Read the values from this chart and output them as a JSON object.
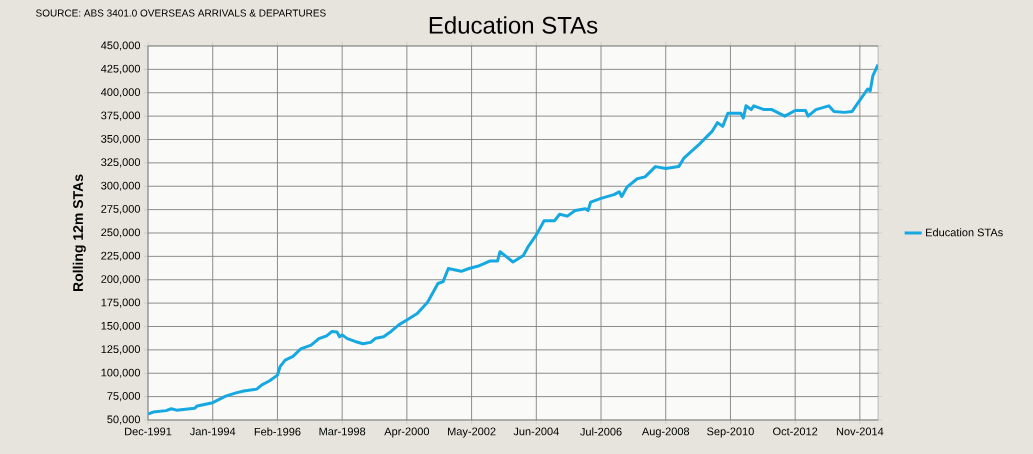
{
  "chart_data": {
    "type": "line",
    "title": "Education STAs",
    "ylabel": "Rolling 12m STAs",
    "annotations": [
      "SOURCE: ABS 3401.0 OVERSEAS ARRIVALS & DEPARTURES"
    ],
    "x": [
      "1991-12",
      "1992-02",
      "1992-07",
      "1992-09",
      "1992-11",
      "1993-06",
      "1993-07",
      "1994-01",
      "1994-06",
      "1994-10",
      "1995-01",
      "1995-06",
      "1995-08",
      "1995-11",
      "1996-02",
      "1996-03",
      "1996-05",
      "1996-08",
      "1996-11",
      "1997-03",
      "1997-06",
      "1997-09",
      "1997-11",
      "1998-01",
      "1998-02",
      "1998-03",
      "1998-05",
      "1998-08",
      "1998-11",
      "1999-02",
      "1999-04",
      "1999-07",
      "1999-10",
      "2000-01",
      "2000-04",
      "2000-08",
      "2000-12",
      "2001-04",
      "2001-06",
      "2001-08",
      "2002-01",
      "2002-04",
      "2002-08",
      "2002-12",
      "2003-03",
      "2003-04",
      "2003-09",
      "2004-01",
      "2004-03",
      "2004-06",
      "2004-09",
      "2005-01",
      "2005-03",
      "2005-06",
      "2005-09",
      "2006-01",
      "2006-02",
      "2006-03",
      "2006-07",
      "2006-12",
      "2007-02",
      "2007-03",
      "2007-05",
      "2007-09",
      "2007-12",
      "2008-04",
      "2008-08",
      "2009-01",
      "2009-03",
      "2009-09",
      "2010-02",
      "2010-04",
      "2010-06",
      "2010-08",
      "2011-01",
      "2011-02",
      "2011-03",
      "2011-05",
      "2011-06",
      "2011-10",
      "2012-01",
      "2012-06",
      "2012-10",
      "2013-02",
      "2013-03",
      "2013-06",
      "2013-11",
      "2014-01",
      "2014-05",
      "2014-08",
      "2014-10",
      "2015-02",
      "2015-03",
      "2015-04",
      "2015-06"
    ],
    "series": [
      {
        "name": "Education STAs",
        "color": "#16a8e0",
        "values": [
          56400,
          58500,
          60000,
          62000,
          60500,
          62500,
          65000,
          68500,
          75500,
          79000,
          81000,
          83000,
          87500,
          92000,
          98000,
          107000,
          114000,
          118000,
          126000,
          130000,
          137000,
          140000,
          144600,
          144000,
          139000,
          141000,
          137000,
          134000,
          131500,
          133000,
          137500,
          139000,
          145000,
          152000,
          157000,
          164000,
          176000,
          196000,
          198000,
          212000,
          209000,
          212000,
          215000,
          220000,
          220000,
          230000,
          219000,
          226000,
          236000,
          248000,
          263000,
          263000,
          270000,
          268000,
          274000,
          276000,
          274000,
          283000,
          287000,
          291000,
          294000,
          289000,
          299000,
          308000,
          310000,
          321000,
          319000,
          321000,
          330000,
          345000,
          359000,
          368000,
          364000,
          378000,
          378000,
          373000,
          386000,
          382000,
          386000,
          382000,
          382000,
          375000,
          381000,
          381000,
          375000,
          382000,
          386000,
          380000,
          379000,
          380000,
          388000,
          404000,
          402000,
          418000,
          430000
        ]
      }
    ],
    "xlim": [
      "1991-12",
      "2015-06"
    ],
    "xticks": [
      {
        "value": "1991-12",
        "label": "Dec-1991"
      },
      {
        "value": "1994-01",
        "label": "Jan-1994"
      },
      {
        "value": "1996-02",
        "label": "Feb-1996"
      },
      {
        "value": "1998-03",
        "label": "Mar-1998"
      },
      {
        "value": "2000-04",
        "label": "Apr-2000"
      },
      {
        "value": "2002-05",
        "label": "May-2002"
      },
      {
        "value": "2004-06",
        "label": "Jun-2004"
      },
      {
        "value": "2006-07",
        "label": "Jul-2006"
      },
      {
        "value": "2008-08",
        "label": "Aug-2008"
      },
      {
        "value": "2010-09",
        "label": "Sep-2010"
      },
      {
        "value": "2012-10",
        "label": "Oct-2012"
      },
      {
        "value": "2014-11",
        "label": "Nov-2014"
      }
    ],
    "ylim": [
      50000,
      450000
    ],
    "yticks": [
      {
        "value": 50000,
        "label": "50,000"
      },
      {
        "value": 75000,
        "label": "75,000"
      },
      {
        "value": 100000,
        "label": "100,000"
      },
      {
        "value": 125000,
        "label": "125,000"
      },
      {
        "value": 150000,
        "label": "150,000"
      },
      {
        "value": 175000,
        "label": "175,000"
      },
      {
        "value": 200000,
        "label": "200,000"
      },
      {
        "value": 225000,
        "label": "225,000"
      },
      {
        "value": 250000,
        "label": "250,000"
      },
      {
        "value": 275000,
        "label": "275,000"
      },
      {
        "value": 300000,
        "label": "300,000"
      },
      {
        "value": 325000,
        "label": "325,000"
      },
      {
        "value": 350000,
        "label": "350,000"
      },
      {
        "value": 375000,
        "label": "375,000"
      },
      {
        "value": 400000,
        "label": "400,000"
      },
      {
        "value": 425000,
        "label": "425,000"
      },
      {
        "value": 450000,
        "label": "450,000"
      }
    ],
    "grid": true,
    "legend": "right",
    "marker": "none",
    "line_style": "solid"
  }
}
